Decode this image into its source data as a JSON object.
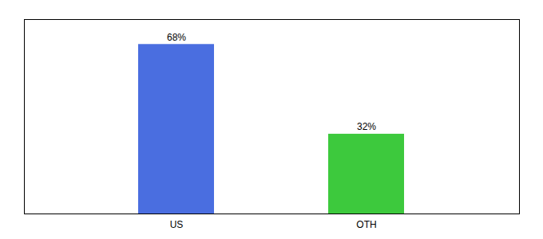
{
  "chart_data": {
    "type": "bar",
    "categories": [
      "US",
      "OTH"
    ],
    "values": [
      68,
      32
    ],
    "value_labels": [
      "68%",
      "32%"
    ],
    "colors": [
      "#4a6ee0",
      "#3dc93d"
    ],
    "ylim": [
      0,
      78
    ],
    "yticks": [],
    "tick_labels": "x",
    "data_labels": true
  }
}
